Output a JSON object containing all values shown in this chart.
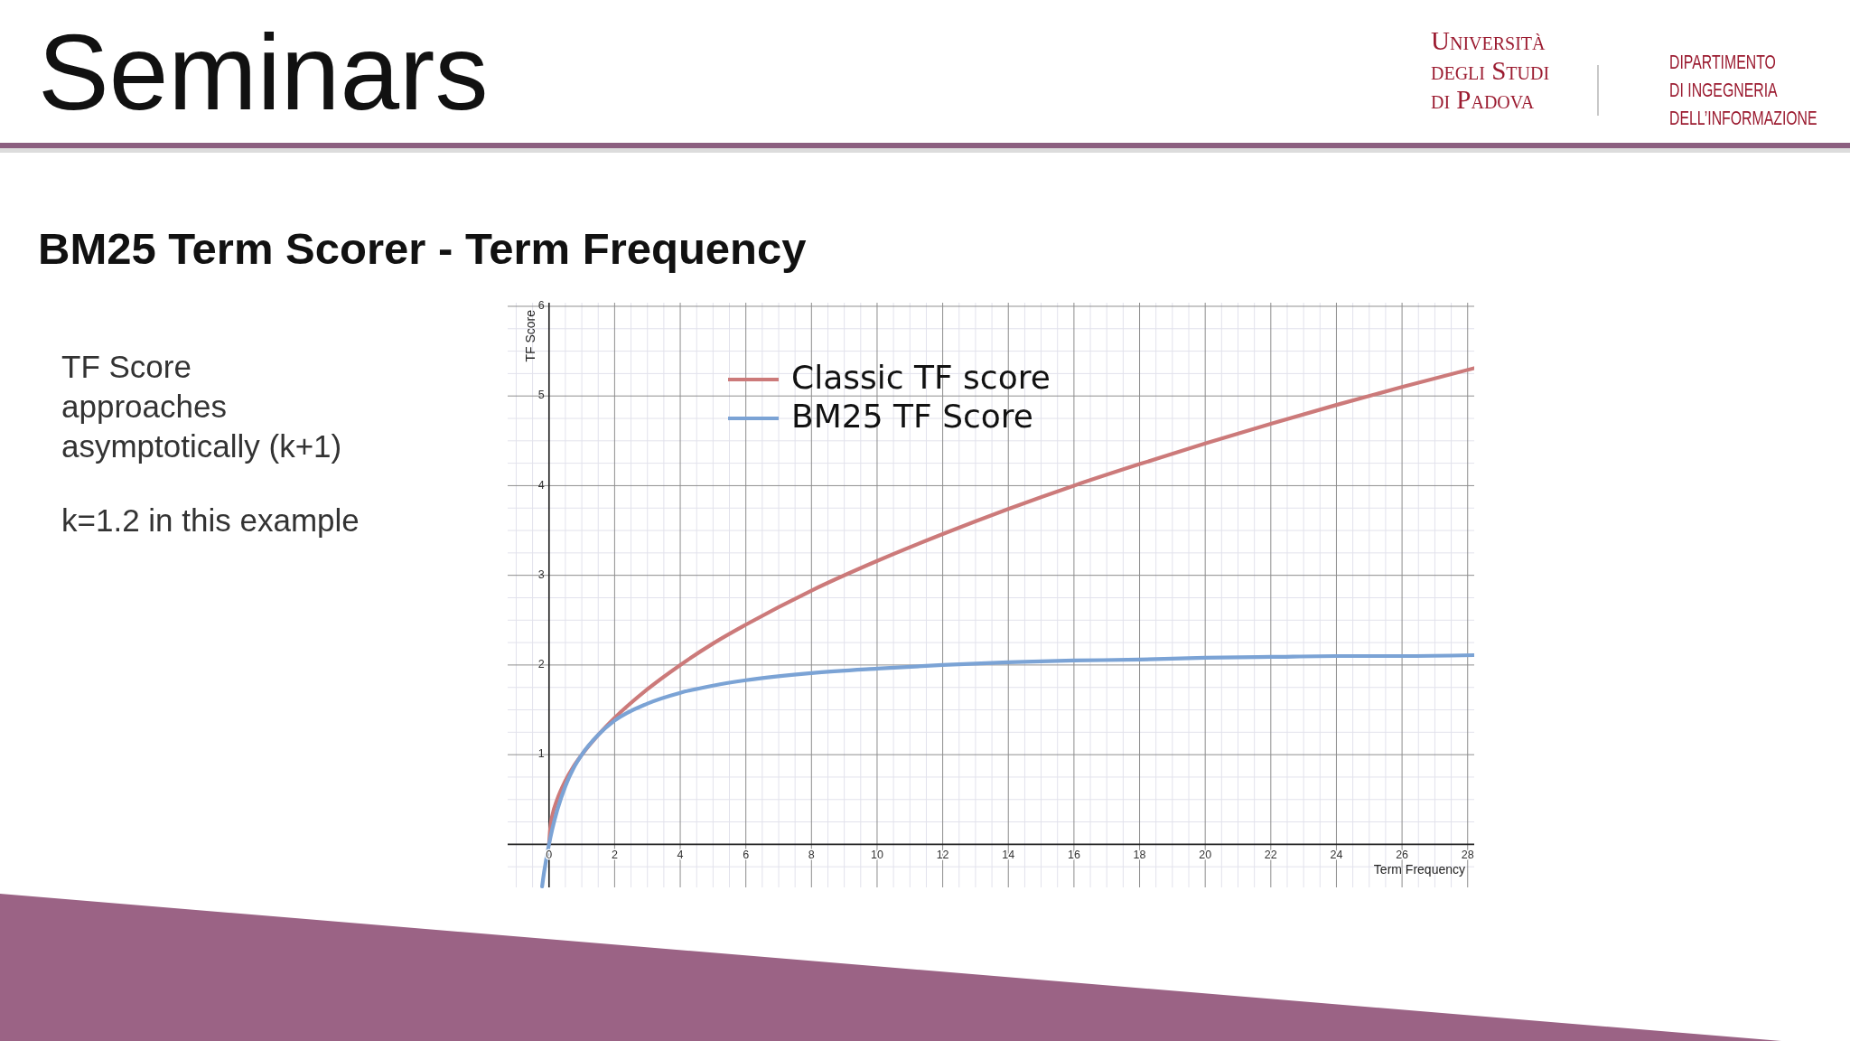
{
  "chart_data": {
    "type": "line",
    "title": "BM25 Term Scorer - Term Frequency",
    "xlabel": "Term Frequency",
    "ylabel": "TF Score",
    "annotations": [
      "Seminars",
      "TF Score\napproaches\nasymptotically (k+1)",
      "k=1.2 in this example",
      "Università\ndegli Studi\ndi Padova",
      "DIPARTIMENTO\nDI INGEGNERIA\nDELL’INFORMAZIONE"
    ],
    "series": [
      {
        "name": "Classic TF score",
        "color": "#cc7a7a",
        "x": [
          0,
          0.05,
          0.1,
          0.25,
          0.5,
          0.75,
          1,
          1.5,
          2,
          3,
          4,
          5,
          6,
          8,
          10,
          12,
          14,
          16,
          18,
          20,
          22,
          24,
          26,
          28.2
        ],
        "values": [
          0,
          0.22,
          0.32,
          0.5,
          0.71,
          0.87,
          1,
          1.22,
          1.41,
          1.73,
          2,
          2.24,
          2.45,
          2.83,
          3.16,
          3.46,
          3.74,
          4,
          4.24,
          4.47,
          4.69,
          4.9,
          5.1,
          5.31
        ]
      },
      {
        "name": "BM25 TF Score",
        "color": "#7ba3d5",
        "x": [
          -0.21,
          -0.15,
          -0.1,
          0,
          0.1,
          0.25,
          0.5,
          0.75,
          1,
          1.5,
          2,
          3,
          4,
          5,
          6,
          8,
          10,
          12,
          14,
          16,
          18,
          20,
          22,
          24,
          26,
          28.2
        ],
        "values": [
          -0.47,
          -0.31,
          -0.2,
          0,
          0.17,
          0.38,
          0.65,
          0.85,
          1,
          1.22,
          1.38,
          1.57,
          1.69,
          1.77,
          1.83,
          1.91,
          1.96,
          2,
          2.03,
          2.05,
          2.06,
          2.08,
          2.09,
          2.1,
          2.1,
          2.11
        ]
      }
    ],
    "xlim": [
      -1.26,
      28.2
    ],
    "ylim": [
      -0.48,
      6.04
    ],
    "xticks": [
      {
        "value": -1,
        "label": null
      },
      {
        "value": -0.5,
        "label": null
      },
      0,
      {
        "value": 0.5,
        "label": null
      },
      {
        "value": 1,
        "label": null
      },
      {
        "value": 1.5,
        "label": null
      },
      2,
      {
        "value": 2.5,
        "label": null
      },
      {
        "value": 3,
        "label": null
      },
      {
        "value": 3.5,
        "label": null
      },
      4,
      {
        "value": 4.5,
        "label": null
      },
      {
        "value": 5,
        "label": null
      },
      {
        "value": 5.5,
        "label": null
      },
      6,
      {
        "value": 6.5,
        "label": null
      },
      {
        "value": 7,
        "label": null
      },
      {
        "value": 7.5,
        "label": null
      },
      8,
      {
        "value": 8.5,
        "label": null
      },
      {
        "value": 9,
        "label": null
      },
      {
        "value": 9.5,
        "label": null
      },
      10,
      {
        "value": 10.5,
        "label": null
      },
      {
        "value": 11,
        "label": null
      },
      {
        "value": 11.5,
        "label": null
      },
      12,
      {
        "value": 12.5,
        "label": null
      },
      {
        "value": 13,
        "label": null
      },
      {
        "value": 13.5,
        "label": null
      },
      14,
      {
        "value": 14.5,
        "label": null
      },
      {
        "value": 15,
        "label": null
      },
      {
        "value": 15.5,
        "label": null
      },
      16,
      {
        "value": 16.5,
        "label": null
      },
      {
        "value": 17,
        "label": null
      },
      {
        "value": 17.5,
        "label": null
      },
      18,
      {
        "value": 18.5,
        "label": null
      },
      {
        "value": 19,
        "label": null
      },
      {
        "value": 19.5,
        "label": null
      },
      20,
      {
        "value": 20.5,
        "label": null
      },
      {
        "value": 21,
        "label": null
      },
      {
        "value": 21.5,
        "label": null
      },
      22,
      {
        "value": 22.5,
        "label": null
      },
      {
        "value": 23,
        "label": null
      },
      {
        "value": 23.5,
        "label": null
      },
      24,
      {
        "value": 24.5,
        "label": null
      },
      {
        "value": 25,
        "label": null
      },
      {
        "value": 25.5,
        "label": null
      },
      26,
      {
        "value": 26.5,
        "label": null
      },
      {
        "value": 27,
        "label": null
      },
      {
        "value": 27.5,
        "label": null
      },
      28
    ],
    "yticks": [
      {
        "value": -0.25,
        "label": null
      },
      {
        "value": 0.25,
        "label": null
      },
      {
        "value": 0.5,
        "label": null
      },
      {
        "value": 0.75,
        "label": null
      },
      1,
      {
        "value": 1.25,
        "label": null
      },
      {
        "value": 1.5,
        "label": null
      },
      {
        "value": 1.75,
        "label": null
      },
      2,
      {
        "value": 2.25,
        "label": null
      },
      {
        "value": 2.5,
        "label": null
      },
      {
        "value": 2.75,
        "label": null
      },
      3,
      {
        "value": 3.25,
        "label": null
      },
      {
        "value": 3.5,
        "label": null
      },
      {
        "value": 3.75,
        "label": null
      },
      4,
      {
        "value": 4.25,
        "label": null
      },
      {
        "value": 4.5,
        "label": null
      },
      {
        "value": 4.75,
        "label": null
      },
      5,
      {
        "value": 5.25,
        "label": null
      },
      {
        "value": 5.5,
        "label": null
      },
      {
        "value": 5.75,
        "label": null
      },
      6
    ],
    "grid": true,
    "legend": "top left"
  }
}
